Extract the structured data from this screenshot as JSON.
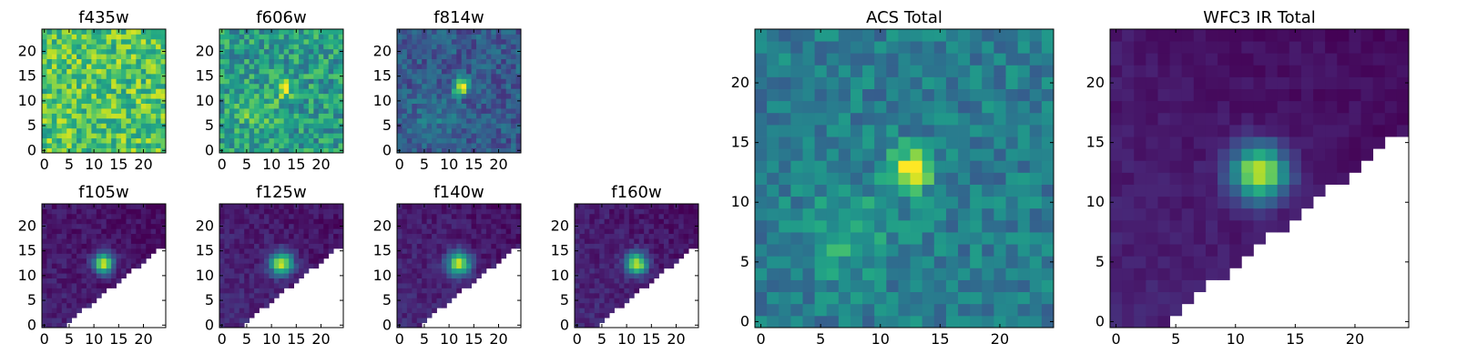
{
  "chart_data": [
    {
      "type": "heatmap",
      "title": "f435w",
      "colormap": "viridis",
      "grid_size": 25,
      "xlim": [
        0,
        24
      ],
      "ylim": [
        0,
        24
      ],
      "xticks": [
        0,
        5,
        10,
        15,
        20
      ],
      "yticks": [
        0,
        5,
        10,
        15,
        20
      ],
      "sources": [],
      "noise": 0.22,
      "background": 0.72,
      "mask": "none"
    },
    {
      "type": "heatmap",
      "title": "f606w",
      "colormap": "viridis",
      "grid_size": 25,
      "xlim": [
        0,
        24
      ],
      "ylim": [
        0,
        24
      ],
      "xticks": [
        0,
        5,
        10,
        15,
        20
      ],
      "yticks": [
        0,
        5,
        10,
        15,
        20
      ],
      "sources": [
        {
          "x": 12.5,
          "y": 12.5,
          "amp": 0.35,
          "sigma": 1.3
        },
        {
          "x": 7,
          "y": 8,
          "amp": 0.2,
          "sigma": 2.5
        }
      ],
      "noise": 0.2,
      "background": 0.55,
      "mask": "none"
    },
    {
      "type": "heatmap",
      "title": "f814w",
      "colormap": "viridis",
      "grid_size": 25,
      "xlim": [
        0,
        24
      ],
      "ylim": [
        0,
        24
      ],
      "xticks": [
        0,
        5,
        10,
        15,
        20
      ],
      "yticks": [
        0,
        5,
        10,
        15,
        20
      ],
      "sources": [
        {
          "x": 12.5,
          "y": 12.8,
          "amp": 0.75,
          "sigma": 1.1
        },
        {
          "x": 7,
          "y": 7,
          "amp": 0.12,
          "sigma": 3
        }
      ],
      "noise": 0.13,
      "background": 0.28,
      "mask": "none"
    },
    {
      "type": "heatmap",
      "title": "f105w",
      "colormap": "viridis",
      "grid_size": 25,
      "xlim": [
        0,
        24
      ],
      "ylim": [
        0,
        24
      ],
      "xticks": [
        0,
        5,
        10,
        15,
        20
      ],
      "yticks": [
        0,
        5,
        10,
        15,
        20
      ],
      "sources": [
        {
          "x": 12,
          "y": 12.5,
          "amp": 0.85,
          "sigma": 1.4
        }
      ],
      "noise": 0.06,
      "background": 0.1,
      "mask": "lower-right"
    },
    {
      "type": "heatmap",
      "title": "f125w",
      "colormap": "viridis",
      "grid_size": 25,
      "xlim": [
        0,
        24
      ],
      "ylim": [
        0,
        24
      ],
      "xticks": [
        0,
        5,
        10,
        15,
        20
      ],
      "yticks": [
        0,
        5,
        10,
        15,
        20
      ],
      "sources": [
        {
          "x": 12,
          "y": 12.5,
          "amp": 0.85,
          "sigma": 1.6
        }
      ],
      "noise": 0.06,
      "background": 0.12,
      "mask": "lower-right"
    },
    {
      "type": "heatmap",
      "title": "f140w",
      "colormap": "viridis",
      "grid_size": 25,
      "xlim": [
        0,
        24
      ],
      "ylim": [
        0,
        24
      ],
      "xticks": [
        0,
        5,
        10,
        15,
        20
      ],
      "yticks": [
        0,
        5,
        10,
        15,
        20
      ],
      "sources": [
        {
          "x": 12,
          "y": 12.5,
          "amp": 0.85,
          "sigma": 1.6
        }
      ],
      "noise": 0.06,
      "background": 0.12,
      "mask": "lower-right"
    },
    {
      "type": "heatmap",
      "title": "f160w",
      "colormap": "viridis",
      "grid_size": 25,
      "xlim": [
        0,
        24
      ],
      "ylim": [
        0,
        24
      ],
      "xticks": [
        0,
        5,
        10,
        15,
        20
      ],
      "yticks": [
        0,
        5,
        10,
        15,
        20
      ],
      "sources": [
        {
          "x": 12,
          "y": 12.5,
          "amp": 0.85,
          "sigma": 1.5
        }
      ],
      "noise": 0.06,
      "background": 0.12,
      "mask": "lower-right"
    },
    {
      "type": "heatmap",
      "title": "ACS Total",
      "colormap": "viridis",
      "grid_size": 25,
      "xlim": [
        0,
        24
      ],
      "ylim": [
        0,
        24
      ],
      "xticks": [
        0,
        5,
        10,
        15,
        20
      ],
      "yticks": [
        0,
        5,
        10,
        15,
        20
      ],
      "sources": [
        {
          "x": 12.5,
          "y": 12.8,
          "amp": 0.6,
          "sigma": 1.2
        },
        {
          "x": 7,
          "y": 7.5,
          "amp": 0.2,
          "sigma": 2.5
        }
      ],
      "noise": 0.13,
      "background": 0.42,
      "mask": "none"
    },
    {
      "type": "heatmap",
      "title": "WFC3 IR Total",
      "colormap": "viridis",
      "grid_size": 25,
      "xlim": [
        0,
        24
      ],
      "ylim": [
        0,
        24
      ],
      "xticks": [
        0,
        5,
        10,
        15,
        20
      ],
      "yticks": [
        0,
        5,
        10,
        15,
        20
      ],
      "sources": [
        {
          "x": 12,
          "y": 12.5,
          "amp": 0.88,
          "sigma": 1.6
        }
      ],
      "noise": 0.035,
      "background": 0.1,
      "mask": "lower-right"
    }
  ]
}
